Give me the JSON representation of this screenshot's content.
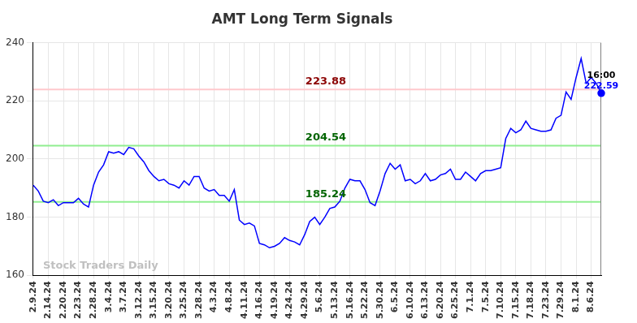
{
  "chart_data": {
    "type": "line",
    "title": "AMT Long Term Signals",
    "watermark": "Stock Traders Daily",
    "last_label": "16:00",
    "color": "#0000ff",
    "grid": true,
    "categories": [
      "2.9.24",
      null,
      null,
      "2.14.24",
      null,
      null,
      "2.20.24",
      null,
      null,
      "2.23.24",
      null,
      null,
      "2.28.24",
      null,
      null,
      "3.4.24",
      null,
      null,
      "3.7.24",
      null,
      null,
      "3.12.24",
      null,
      null,
      "3.15.24",
      null,
      null,
      "3.20.24",
      null,
      null,
      "3.25.24",
      null,
      null,
      "3.28.24",
      null,
      null,
      "4.3.24",
      null,
      null,
      "4.8.24",
      null,
      null,
      "4.11.24",
      null,
      null,
      "4.16.24",
      null,
      null,
      "4.19.24",
      null,
      null,
      "4.24.24",
      null,
      null,
      "4.29.24",
      null,
      null,
      "5.6.24",
      null,
      null,
      "5.13.24",
      null,
      null,
      "5.16.24",
      null,
      null,
      "5.22.24",
      null,
      null,
      "5.30.24",
      null,
      null,
      "6.5.24",
      null,
      null,
      "6.10.24",
      null,
      null,
      "6.13.24",
      null,
      null,
      "6.20.24",
      null,
      null,
      "6.25.24",
      null,
      null,
      "7.1.24",
      null,
      null,
      "7.5.24",
      null,
      null,
      "7.10.24",
      null,
      null,
      "7.15.24",
      null,
      null,
      "7.18.24",
      null,
      null,
      "7.23.24",
      null,
      null,
      "7.29.24",
      null,
      null,
      "8.1.24",
      null,
      null,
      "8.6.24",
      null,
      null
    ],
    "values": [
      191,
      189,
      185.5,
      185,
      186,
      184,
      185,
      185,
      185,
      186.5,
      184.5,
      183.5,
      191,
      195.5,
      198,
      202.5,
      202,
      202.5,
      201.5,
      204,
      203.5,
      201,
      199,
      196,
      194,
      192.5,
      193,
      191.5,
      191,
      190,
      192.5,
      191,
      194,
      194,
      190,
      189,
      189.5,
      187.5,
      187.5,
      185.5,
      189.5,
      179,
      177.5,
      178,
      177,
      171,
      170.5,
      169.5,
      170,
      171,
      173,
      172,
      171.5,
      170.5,
      174,
      178.5,
      180,
      177.5,
      180,
      183,
      183.5,
      185.5,
      190,
      193,
      192.5,
      192.5,
      189.5,
      185,
      184,
      189,
      195,
      198.5,
      196.5,
      198,
      192.5,
      193,
      191.5,
      192.5,
      195,
      192.5,
      193,
      194.5,
      195,
      196.5,
      193,
      193,
      195.5,
      194,
      192.5,
      195,
      196,
      196,
      196.5,
      197,
      207,
      210.5,
      209,
      210,
      213,
      210.5,
      210,
      209.5,
      209.5,
      210,
      214,
      215,
      223,
      220.5,
      228,
      234.5,
      226,
      228,
      226,
      222.59
    ],
    "ylim": [
      160,
      240
    ],
    "yticks": [
      160,
      180,
      200,
      220,
      240
    ],
    "horizontal_lines": [
      {
        "value": 223.88,
        "color": "#ffc8cc",
        "label_color": "#8b0000"
      },
      {
        "value": 204.54,
        "color": "#90ee90",
        "label_color": "#006400"
      },
      {
        "value": 185.24,
        "color": "#90ee90",
        "label_color": "#006400"
      }
    ]
  }
}
